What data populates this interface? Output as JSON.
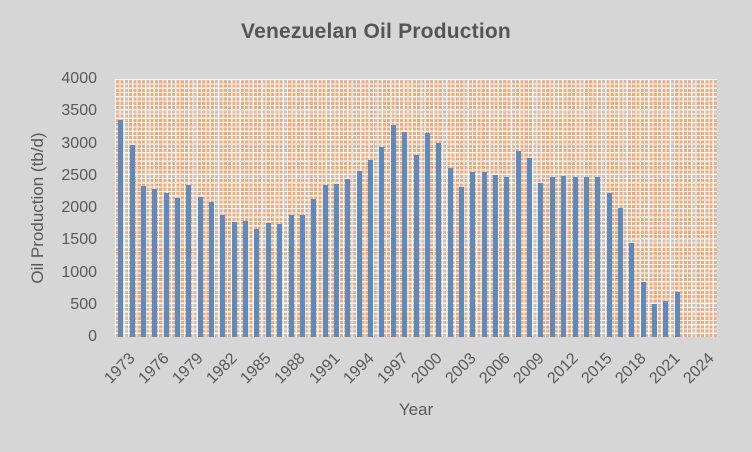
{
  "chart_data": {
    "type": "bar",
    "title": "Venezuelan Oil Production",
    "xlabel": "Year",
    "ylabel": "Oil Production (tb/d)",
    "ylim": [
      0,
      4000
    ],
    "ytick_step": 500,
    "ytick_labels": [
      "0",
      "500",
      "1000",
      "1500",
      "2000",
      "2500",
      "3000",
      "3500",
      "4000"
    ],
    "xtick_labels": [
      "1973",
      "1976",
      "1979",
      "1982",
      "1985",
      "1988",
      "1991",
      "1994",
      "1997",
      "2000",
      "2003",
      "2006",
      "2009",
      "2012",
      "2015",
      "2018",
      "2021",
      "2024"
    ],
    "x_first_category": 1973,
    "x_last_category": 2025,
    "x": [
      1973,
      1974,
      1975,
      1976,
      1977,
      1978,
      1979,
      1980,
      1981,
      1982,
      1983,
      1984,
      1985,
      1986,
      1987,
      1988,
      1989,
      1990,
      1991,
      1992,
      1993,
      1994,
      1995,
      1996,
      1997,
      1998,
      1999,
      2000,
      2001,
      2002,
      2003,
      2004,
      2005,
      2006,
      2007,
      2008,
      2009,
      2010,
      2011,
      2012,
      2013,
      2014,
      2015,
      2016,
      2017,
      2018,
      2019,
      2020,
      2021,
      2022
    ],
    "values": [
      3370,
      2976,
      2346,
      2294,
      2230,
      2160,
      2356,
      2170,
      2095,
      1885,
      1790,
      1800,
      1675,
      1775,
      1750,
      1885,
      1895,
      2135,
      2355,
      2370,
      2455,
      2580,
      2750,
      2940,
      3280,
      3180,
      2815,
      3160,
      3010,
      2615,
      2320,
      2555,
      2565,
      2510,
      2485,
      2880,
      2775,
      2390,
      2485,
      2495,
      2485,
      2485,
      2475,
      2237,
      1995,
      1460,
      857,
      507,
      563,
      702
    ],
    "grid": true,
    "legend": false,
    "colors": {
      "bar": "#5e8bbd",
      "plot_pattern_orange": "#f0ab7e",
      "plot_pattern_mesh": "#f8f5f0",
      "gridline_gray": "#c6c6c6",
      "chart_background": "#d6d6d6",
      "text": "#595959",
      "title_text": "#555555"
    }
  }
}
